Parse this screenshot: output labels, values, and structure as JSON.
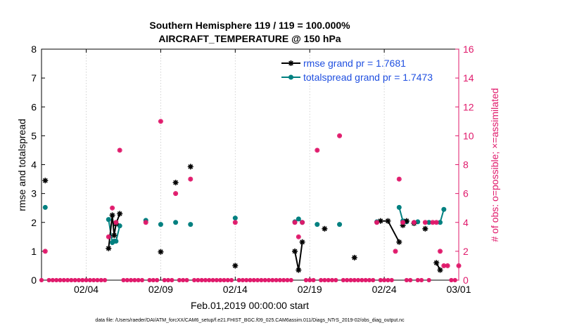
{
  "chart_data": {
    "type": "line",
    "title": "Southern Hemisphere 119 / 119 = 100.000%",
    "subtitle": "AIRCRAFT_TEMPERATURE @ 150 hPa",
    "xlabel": "Feb.01,2019 00:00:00 start",
    "ylabel_left": "rmse and totalspread",
    "ylabel_right": "# of obs: o=possible; ×=assimilated",
    "xlim": [
      0,
      28
    ],
    "ylim_left": [
      0,
      8
    ],
    "ylim_right": [
      0,
      16
    ],
    "x_ticks": [
      3,
      8,
      13,
      18,
      23,
      28
    ],
    "x_tick_labels": [
      "02/04",
      "02/09",
      "02/14",
      "02/19",
      "02/24",
      "03/01"
    ],
    "y_ticks_left": [
      0,
      1,
      2,
      3,
      4,
      5,
      6,
      7,
      8
    ],
    "y_ticks_right": [
      0,
      2,
      4,
      6,
      8,
      10,
      12,
      14,
      16
    ],
    "colors": {
      "rmse": "#000000",
      "spread": "#008080",
      "obs": "#e0196b",
      "axis": "#000000"
    },
    "series": [
      {
        "name": "rmse grand pr = 1.7681",
        "axis": "left",
        "x": [
          0.25,
          4.5,
          4.75,
          4.875,
          5.0,
          5.25,
          8.0,
          9.0,
          10.0,
          13.0,
          17.0,
          17.25,
          17.5,
          19.0,
          21.0,
          22.75,
          23.25,
          24.0,
          24.25,
          24.5,
          25.0,
          25.75,
          26.5,
          26.75
        ],
        "values": [
          3.45,
          1.1,
          2.25,
          1.55,
          1.95,
          2.3,
          0.98,
          3.38,
          3.93,
          0.5,
          1.0,
          0.35,
          1.32,
          1.78,
          0.78,
          2.05,
          2.05,
          1.32,
          1.9,
          2.05,
          1.97,
          1.78,
          0.6,
          0.35
        ],
        "segments": [
          [
            1,
            2,
            3,
            4,
            5
          ],
          [
            10,
            11,
            12
          ],
          [
            15,
            16,
            17
          ],
          [
            22,
            23
          ]
        ]
      },
      {
        "name": "totalspread grand pr = 1.7473",
        "axis": "left",
        "x": [
          0.25,
          4.5,
          4.75,
          4.875,
          5.0,
          5.25,
          7.0,
          8.0,
          9.0,
          10.0,
          13.0,
          17.0,
          17.25,
          17.5,
          18.5,
          20.0,
          22.5,
          24.0,
          24.25,
          24.5,
          25.25,
          26.0,
          26.75,
          27.0
        ],
        "values": [
          2.52,
          2.1,
          1.3,
          1.35,
          1.35,
          1.88,
          2.07,
          1.93,
          2.0,
          1.93,
          2.15,
          2.02,
          2.12,
          2.0,
          1.93,
          1.93,
          2.02,
          2.52,
          2.05,
          2.02,
          2.02,
          2.0,
          2.0,
          2.45
        ],
        "segments": [
          [
            1,
            2,
            3,
            4,
            5
          ],
          [
            11,
            12,
            13
          ],
          [
            17,
            18,
            19
          ],
          [
            21,
            22,
            23
          ]
        ]
      }
    ],
    "obs_possible": {
      "axis": "right",
      "x": [
        0.25,
        4.5,
        4.75,
        5.0,
        5.25,
        7.0,
        8.0,
        9.0,
        10.0,
        13.0,
        17.0,
        17.25,
        17.5,
        18.5,
        20.0,
        22.5,
        23.75,
        24.0,
        24.25,
        25.0,
        25.75,
        26.25,
        26.5,
        26.75,
        27.0,
        27.25,
        28.0
      ],
      "values": [
        2,
        3,
        5,
        4,
        9,
        4,
        11,
        6,
        7,
        4,
        4,
        3,
        4,
        9,
        10,
        4,
        2,
        7,
        4,
        4,
        4,
        4,
        4,
        2,
        1,
        1,
        1
      ]
    },
    "zero_obs_x": [
      0,
      0.5,
      0.75,
      1,
      1.25,
      1.5,
      1.75,
      2,
      2.25,
      2.5,
      2.75,
      3,
      3.25,
      3.5,
      3.75,
      4,
      4.25,
      5.5,
      5.75,
      6,
      6.25,
      6.5,
      6.75,
      7.25,
      7.5,
      7.75,
      8.25,
      8.5,
      8.75,
      9.25,
      9.5,
      9.75,
      10.25,
      10.5,
      10.75,
      11,
      11.25,
      11.5,
      11.75,
      12,
      12.25,
      12.5,
      12.75,
      13.25,
      13.5,
      13.75,
      14,
      14.25,
      14.5,
      14.75,
      15,
      15.25,
      15.5,
      15.75,
      16,
      16.25,
      16.5,
      16.75,
      17.75,
      18,
      18.25,
      18.75,
      19,
      19.25,
      19.5,
      19.75,
      20.25,
      20.5,
      20.75,
      21,
      21.25,
      21.5,
      21.75,
      22,
      22.25,
      22.75,
      23,
      23.25,
      23.5,
      24.5,
      24.75,
      25.25,
      25.5,
      26,
      27.5,
      27.75
    ],
    "legend": [
      {
        "label": "rmse grand pr = 1.7681",
        "series": "rmse"
      },
      {
        "label": "totalspread grand pr = 1.7473",
        "series": "spread"
      }
    ],
    "legend_position": "top-right"
  },
  "footer": "data file: /Users/raeder/DAI/ATM_forcXX/CAM6_setup/f.e21.FHIST_BGC.f09_025.CAM6assim.011/Diags_NTrS_2019-02/obs_diag_output.nc"
}
